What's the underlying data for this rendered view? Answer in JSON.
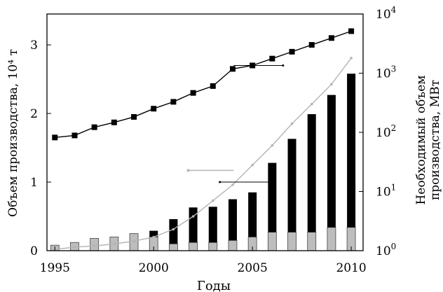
{
  "chart_data": {
    "type": "bar",
    "xlabel": "Годы",
    "ylabel_left": "Объем производства, 10⁴ т",
    "ylabel_right_line1": "Необходимый объем",
    "ylabel_right_line2": "производства, МВт",
    "x_ticks": [
      "1995",
      "2000",
      "2005",
      "2010"
    ],
    "y_left_ticks": [
      "0",
      "1",
      "2",
      "3"
    ],
    "y_right_ticks": [
      {
        "base": "10",
        "exp": "0"
      },
      {
        "base": "10",
        "exp": "1"
      },
      {
        "base": "10",
        "exp": "2"
      },
      {
        "base": "10",
        "exp": "3"
      },
      {
        "base": "10",
        "exp": "4"
      }
    ],
    "xlim": [
      1994.6,
      2010.6
    ],
    "ylim_left": [
      0,
      3.45
    ],
    "ylim_right": [
      1,
      10000
    ],
    "right_scale": "log",
    "years": [
      1995,
      1996,
      1997,
      1998,
      1999,
      2000,
      2001,
      2002,
      2003,
      2004,
      2005,
      2006,
      2007,
      2008,
      2009,
      2010
    ],
    "bars_gray": [
      0.08,
      0.12,
      0.18,
      0.2,
      0.25,
      0.2,
      0.1,
      0.12,
      0.12,
      0.15,
      0.2,
      0.27,
      0.27,
      0.27,
      0.34,
      0.34
    ],
    "bars_black": [
      0.0,
      0.0,
      0.0,
      0.0,
      0.0,
      0.09,
      0.36,
      0.51,
      0.52,
      0.6,
      0.65,
      1.01,
      1.36,
      1.72,
      1.93,
      2.24
    ],
    "line_squares_left": [
      1.65,
      1.68,
      1.8,
      1.87,
      1.95,
      2.07,
      2.17,
      2.3,
      2.4,
      2.65,
      2.7,
      2.8,
      2.9,
      3.0,
      3.1,
      3.2
    ],
    "line_gray_right": [
      1.05,
      1.15,
      1.2,
      1.3,
      1.45,
      1.7,
      2.3,
      3.8,
      7,
      13,
      28,
      60,
      140,
      300,
      650,
      1800
    ],
    "colors": {
      "bar_gray": "#bdbdbd",
      "bar_black": "#000000",
      "line_squares": "#000000",
      "line_gray": "#b4b4b4"
    }
  }
}
